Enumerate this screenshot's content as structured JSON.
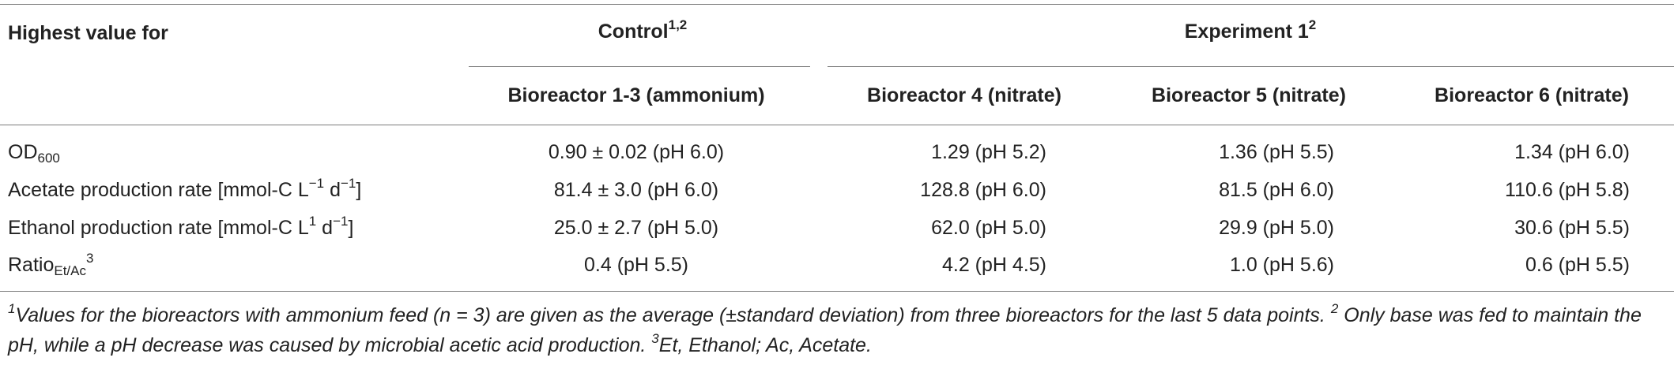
{
  "header": {
    "row_label": "Highest value for",
    "control": {
      "label": "Control",
      "sup": "1,2"
    },
    "experiment": {
      "label": "Experiment 1",
      "sup": "2"
    },
    "columns": [
      "Bioreactor 1-3 (ammonium)",
      "Bioreactor 4 (nitrate)",
      "Bioreactor 5 (nitrate)",
      "Bioreactor 6 (nitrate)"
    ]
  },
  "rows": [
    {
      "label_main": "OD",
      "label_sub": "600",
      "values": [
        "0.90 ± 0.02 (pH 6.0)",
        "1.29 (pH 5.2)",
        "1.36 (pH 5.5)",
        "1.34 (pH 6.0)"
      ]
    },
    {
      "label_a": "Acetate production rate [mmol-C L",
      "sup1": "−1",
      "label_b": " d",
      "sup2": "−1",
      "label_c": "]",
      "values": [
        "81.4 ± 3.0 (pH 6.0)",
        "128.8 (pH 6.0)",
        "81.5 (pH 6.0)",
        "110.6 (pH 5.8)"
      ]
    },
    {
      "label_a": "Ethanol production rate [mmol-C L",
      "sup1": "1",
      "label_b": " d",
      "sup2": "−1",
      "label_c": "]",
      "values": [
        "25.0 ± 2.7 (pH 5.0)",
        "62.0 (pH 5.0)",
        "29.9 (pH 5.0)",
        "30.6 (pH 5.5)"
      ]
    },
    {
      "label_main": "Ratio",
      "label_sub": "Et/Ac",
      "label_sup": "3",
      "values": [
        "0.4 (pH 5.5)",
        "4.2 (pH 4.5)",
        "1.0 (pH 5.6)",
        "0.6 (pH 5.5)"
      ]
    }
  ],
  "footnote": {
    "n1": "1",
    "t1": "Values for the bioreactors with ammonium feed (n = 3) are given as the average (±standard deviation) from three bioreactors for the last 5 data points. ",
    "n2": "2",
    "t2": " Only base was fed to maintain the pH, while a pH decrease was caused by microbial acetic acid production. ",
    "n3": "3",
    "t3": "Et, Ethanol; Ac, Acetate."
  }
}
